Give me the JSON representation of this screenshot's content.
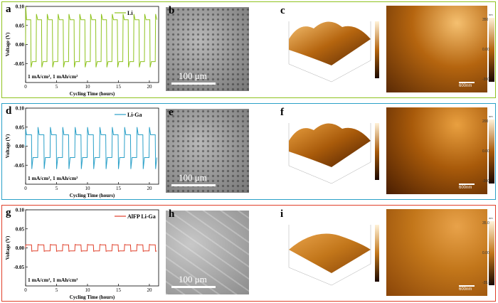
{
  "rows": [
    {
      "border_color": "#8fc31f",
      "letters": {
        "chart": "a",
        "sem": "b",
        "afm": "c"
      },
      "sem_scale": "100 μm",
      "afm_scale": "600nm",
      "cbar_ticks": [
        "350",
        "0.00",
        "-350"
      ],
      "cbar_title": "nm",
      "afm_colors": [
        "#5a2a05",
        "#b5650f",
        "#f5c070"
      ]
    },
    {
      "border_color": "#2aa0c8",
      "letters": {
        "chart": "d",
        "sem": "e",
        "afm": "f"
      },
      "sem_scale": "100 μm",
      "afm_scale": "600nm",
      "cbar_ticks": [
        "200",
        "0.00",
        "-200"
      ],
      "cbar_title": "nm",
      "afm_colors": [
        "#4a1e02",
        "#a85a0a",
        "#e9a040"
      ]
    },
    {
      "border_color": "#e0402a",
      "letters": {
        "chart": "g",
        "sem": "h",
        "afm": "i"
      },
      "sem_scale": "100 μm",
      "afm_scale": "600nm",
      "cbar_ticks": [
        "35.0",
        "0.00",
        "-35.0"
      ],
      "cbar_title": "nm",
      "afm_colors": [
        "#8a4508",
        "#c2761a",
        "#e8a24a"
      ]
    }
  ],
  "chart_data": [
    {
      "type": "line",
      "color": "#8fc31f",
      "ylabel": "Voltage (V)",
      "xlabel": "Cycling Time (hours)",
      "annotation": "1 mA/cm², 1 mAh/cm²",
      "series": [
        {
          "name": "Li",
          "period_hours": 1.75,
          "high": 0.065,
          "low": -0.045,
          "spike_high": 0.08,
          "spike_low": -0.06,
          "start_spike": 0.1
        }
      ],
      "xlim": [
        0,
        21.5
      ],
      "ylim": [
        -0.1,
        0.1
      ],
      "xticks": [
        0,
        5,
        10,
        15,
        20
      ],
      "yticks": [
        -0.05,
        0.0,
        0.05,
        0.1
      ],
      "ytick_labels": [
        "-0.05",
        "0.00",
        "0.05",
        "0.10"
      ]
    },
    {
      "type": "line",
      "color": "#2aa0c8",
      "ylabel": "Voltage (V)",
      "xlabel": "Cycling Time (hours)",
      "annotation": "1 mA/cm², 1 mAh/cm²",
      "series": [
        {
          "name": "Li-Ga",
          "period_hours": 2.0,
          "high": 0.03,
          "low": -0.03,
          "spike_high": 0.05,
          "spike_low": -0.06,
          "start_spike": 0.045
        }
      ],
      "xlim": [
        0,
        21.5
      ],
      "ylim": [
        -0.1,
        0.1
      ],
      "xticks": [
        0,
        5,
        10,
        15,
        20
      ],
      "yticks": [
        -0.05,
        0.0,
        0.05,
        0.1
      ],
      "ytick_labels": [
        "-0.05",
        "0.00",
        "0.05",
        "0.10"
      ]
    },
    {
      "type": "line",
      "color": "#e0402a",
      "ylabel": "Voltage (V)",
      "xlabel": "Cycling Time (hours)",
      "annotation": "1 mA/cm², 1 mAh/cm²",
      "series": [
        {
          "name": "AlFP Li-Ga",
          "period_hours": 2.0,
          "high": 0.008,
          "low": -0.008,
          "spike_high": 0.009,
          "spike_low": -0.009,
          "start_spike": 0.008
        }
      ],
      "xlim": [
        0,
        21.5
      ],
      "ylim": [
        -0.1,
        0.1
      ],
      "xticks": [
        0,
        5,
        10,
        15,
        20
      ],
      "yticks": [
        -0.05,
        0.0,
        0.05,
        0.1
      ],
      "ytick_labels": [
        "-0.05",
        "0.00",
        "0.05",
        "0.10"
      ]
    }
  ]
}
